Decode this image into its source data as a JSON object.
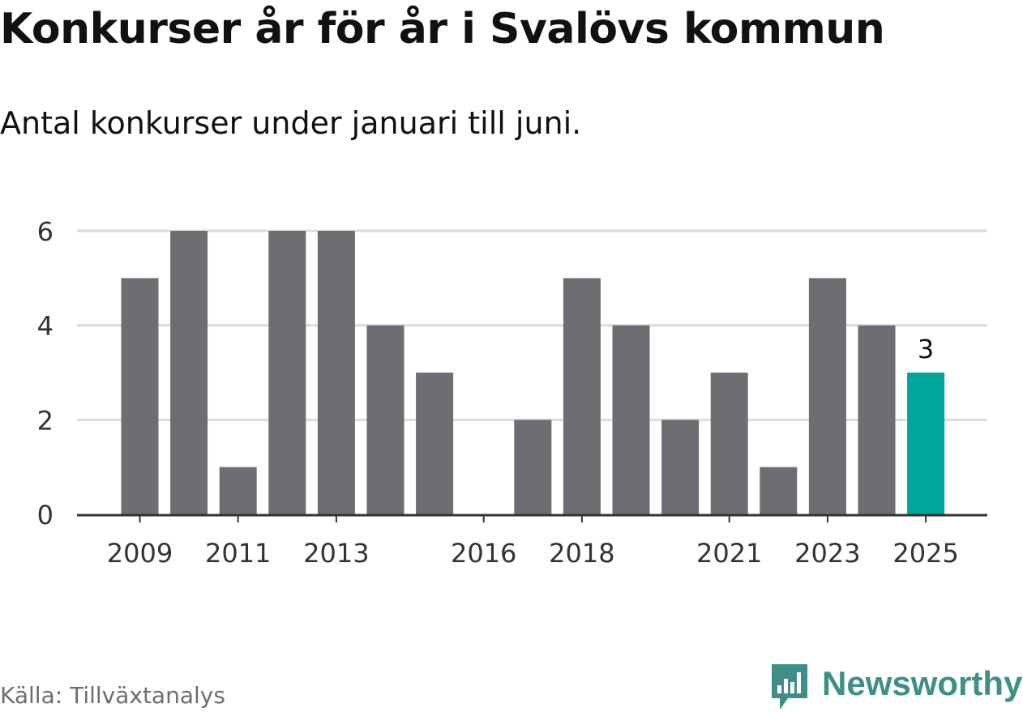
{
  "title": "Konkurser år för år i Svalövs kommun",
  "subtitle": "Antal konkurser under januari till juni.",
  "source": "Källa: Tillväxtanalys",
  "brand": {
    "name": "Newsworthy",
    "color": "#3f8f88",
    "icon": "bar-chart-speech-bubble-icon"
  },
  "colors": {
    "bar": "#6e6d72",
    "highlight": "#00a59b",
    "grid": "#dcdcdc",
    "axis": "#333333"
  },
  "chart_data": {
    "type": "bar",
    "title": "Konkurser år för år i Svalövs kommun",
    "subtitle": "Antal konkurser under januari till juni.",
    "xlabel": "",
    "ylabel": "",
    "categories": [
      "2009",
      "2010",
      "2011",
      "2012",
      "2013",
      "2014",
      "2015",
      "2016",
      "2017",
      "2018",
      "2019",
      "2020",
      "2021",
      "2022",
      "2023",
      "2024",
      "2025"
    ],
    "values": [
      5,
      6,
      1,
      6,
      6,
      4,
      3,
      0,
      2,
      5,
      4,
      2,
      3,
      1,
      5,
      4,
      3
    ],
    "x_tick_labels": [
      "2009",
      "2011",
      "2013",
      "2016",
      "2018",
      "2021",
      "2023",
      "2025"
    ],
    "y_ticks": [
      0,
      2,
      4,
      6
    ],
    "ylim": [
      0,
      6
    ],
    "grid": true,
    "highlight_category": "2025",
    "data_labels": [
      {
        "category": "2025",
        "text": "3"
      }
    ]
  }
}
